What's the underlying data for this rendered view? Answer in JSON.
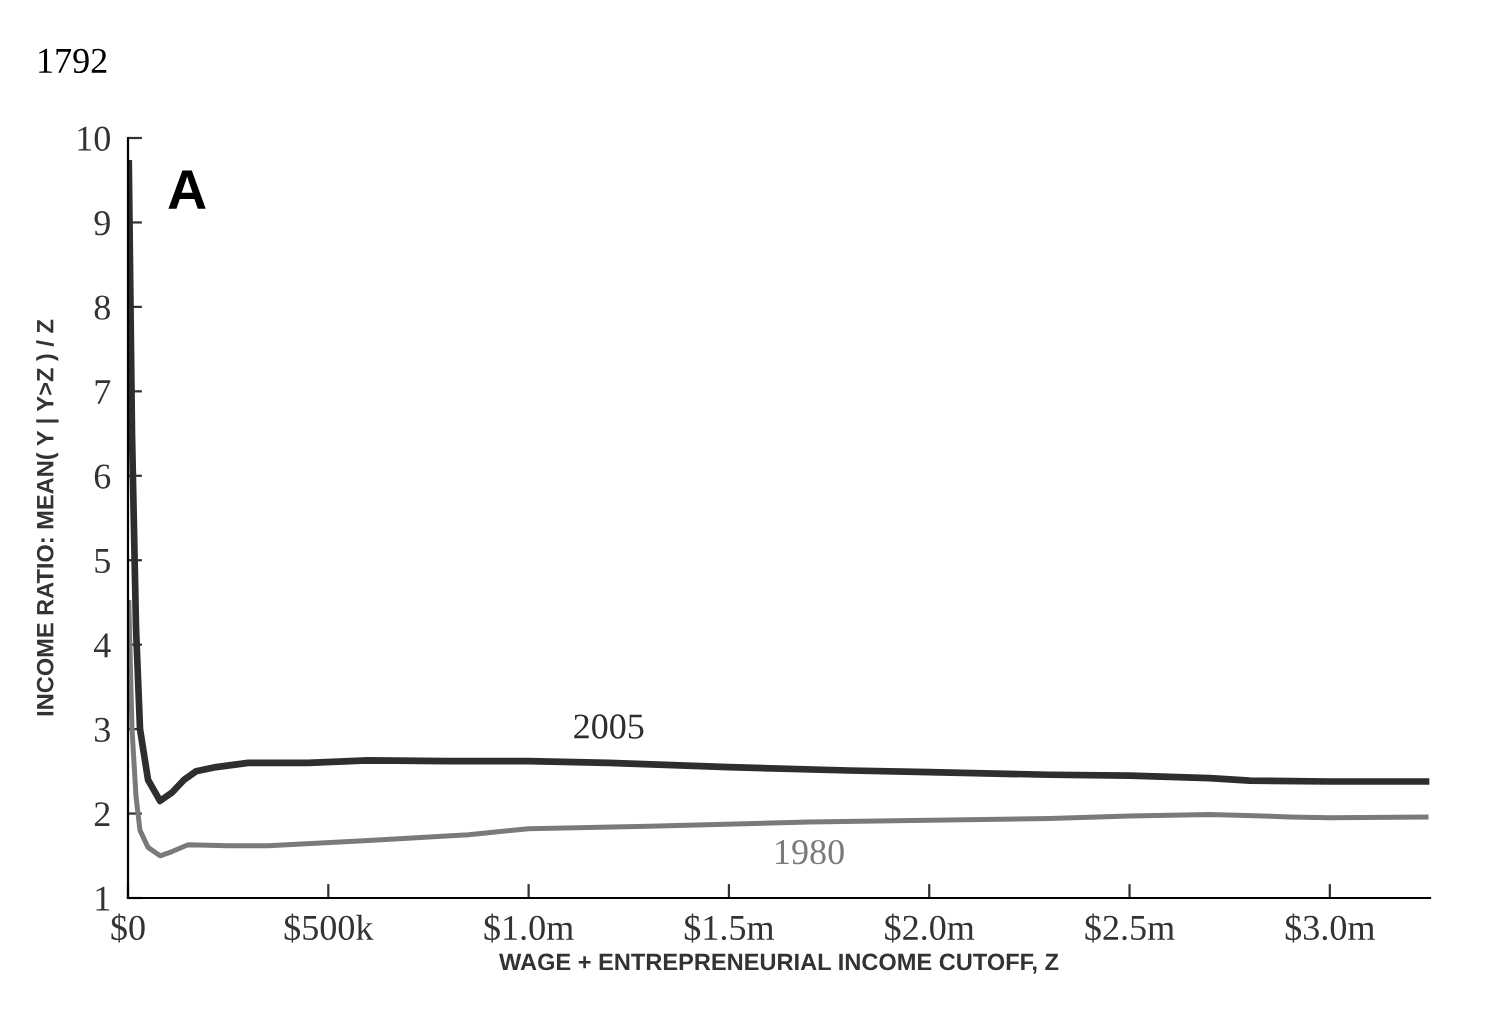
{
  "chart_data": {
    "type": "line",
    "xlabel": "WAGE + ENTREPRENEURIAL INCOME CUTOFF, Z",
    "ylabel": "INCOME RATIO: MEAN( Y | Y>Z ) / Z",
    "annotations": [
      "1792",
      "A"
    ],
    "series": [
      {
        "name": "2005",
        "color": "#2e2e2e",
        "x": [
          2000,
          10000,
          20000,
          30000,
          50000,
          80000,
          110000,
          140000,
          170000,
          220000,
          300000,
          450000,
          600000,
          800000,
          1000000,
          1200000,
          1500000,
          1800000,
          2000000,
          2300000,
          2500000,
          2700000,
          2800000,
          3000000,
          3240000
        ],
        "values": [
          9.7,
          6.5,
          4.2,
          3.0,
          2.4,
          2.15,
          2.25,
          2.4,
          2.5,
          2.55,
          2.6,
          2.6,
          2.63,
          2.62,
          2.62,
          2.6,
          2.55,
          2.51,
          2.49,
          2.46,
          2.45,
          2.42,
          2.39,
          2.38,
          2.38
        ]
      },
      {
        "name": "1980",
        "color": "#7a7a7a",
        "x": [
          2000,
          10000,
          20000,
          30000,
          50000,
          80000,
          110000,
          150000,
          250000,
          350000,
          600000,
          850000,
          1000000,
          1300000,
          1700000,
          2000000,
          2300000,
          2500000,
          2700000,
          2900000,
          3000000,
          3240000
        ],
        "values": [
          4.5,
          3.0,
          2.2,
          1.8,
          1.6,
          1.5,
          1.55,
          1.63,
          1.62,
          1.62,
          1.68,
          1.75,
          1.82,
          1.85,
          1.9,
          1.92,
          1.94,
          1.97,
          1.99,
          1.96,
          1.95,
          1.96
        ]
      }
    ],
    "xlim": [
      0,
      3250000
    ],
    "ylim": [
      1,
      10
    ],
    "xticks": [
      {
        "value": 0,
        "label": "$0"
      },
      {
        "value": 500000,
        "label": "$500k"
      },
      {
        "value": 1000000,
        "label": "$1.0m"
      },
      {
        "value": 1500000,
        "label": "$1.5m"
      },
      {
        "value": 2000000,
        "label": "$2.0m"
      },
      {
        "value": 2500000,
        "label": "$2.5m"
      },
      {
        "value": 3000000,
        "label": "$3.0m"
      }
    ],
    "yticks": [
      1,
      2,
      3,
      4,
      5,
      6,
      7,
      8,
      9,
      10
    ],
    "grid": false,
    "legend": false,
    "marker": "none",
    "line_style": "solid"
  }
}
